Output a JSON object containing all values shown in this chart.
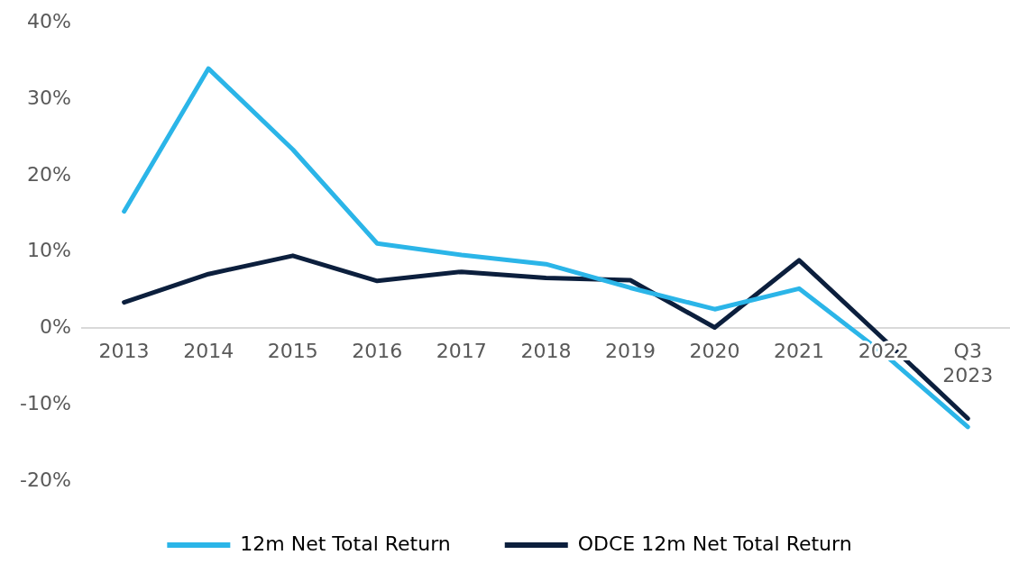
{
  "chart_data": {
    "type": "line",
    "categories": [
      "2013",
      "2014",
      "2015",
      "2016",
      "2017",
      "2018",
      "2019",
      "2020",
      "2021",
      "2022",
      "Q3 2023"
    ],
    "series": [
      {
        "name": "12m Net Total Return",
        "color": "#2bb5e8",
        "values": [
          15.3,
          34,
          23.4,
          11.1,
          9.6,
          8.4,
          5.3,
          2.5,
          5.2,
          -3.3,
          -12.9
        ]
      },
      {
        "name": "ODCE 12m Net Total Return",
        "color": "#0c1f3d",
        "values": [
          3.4,
          7.1,
          9.5,
          6.2,
          7.4,
          6.6,
          6.3,
          0.1,
          8.9,
          -1.4,
          -11.8
        ]
      }
    ],
    "ylim": [
      -20,
      40
    ],
    "yticks": [
      {
        "value": -20,
        "label": "-20%"
      },
      {
        "value": -10,
        "label": "-10%"
      },
      {
        "value": 0,
        "label": "0%"
      },
      {
        "value": 10,
        "label": "10%"
      },
      {
        "value": 20,
        "label": "20%"
      },
      {
        "value": 30,
        "label": "30%"
      },
      {
        "value": 40,
        "label": "40%"
      }
    ],
    "grid": false,
    "legend": "bottom",
    "marker": "none",
    "line_style": "solid"
  }
}
